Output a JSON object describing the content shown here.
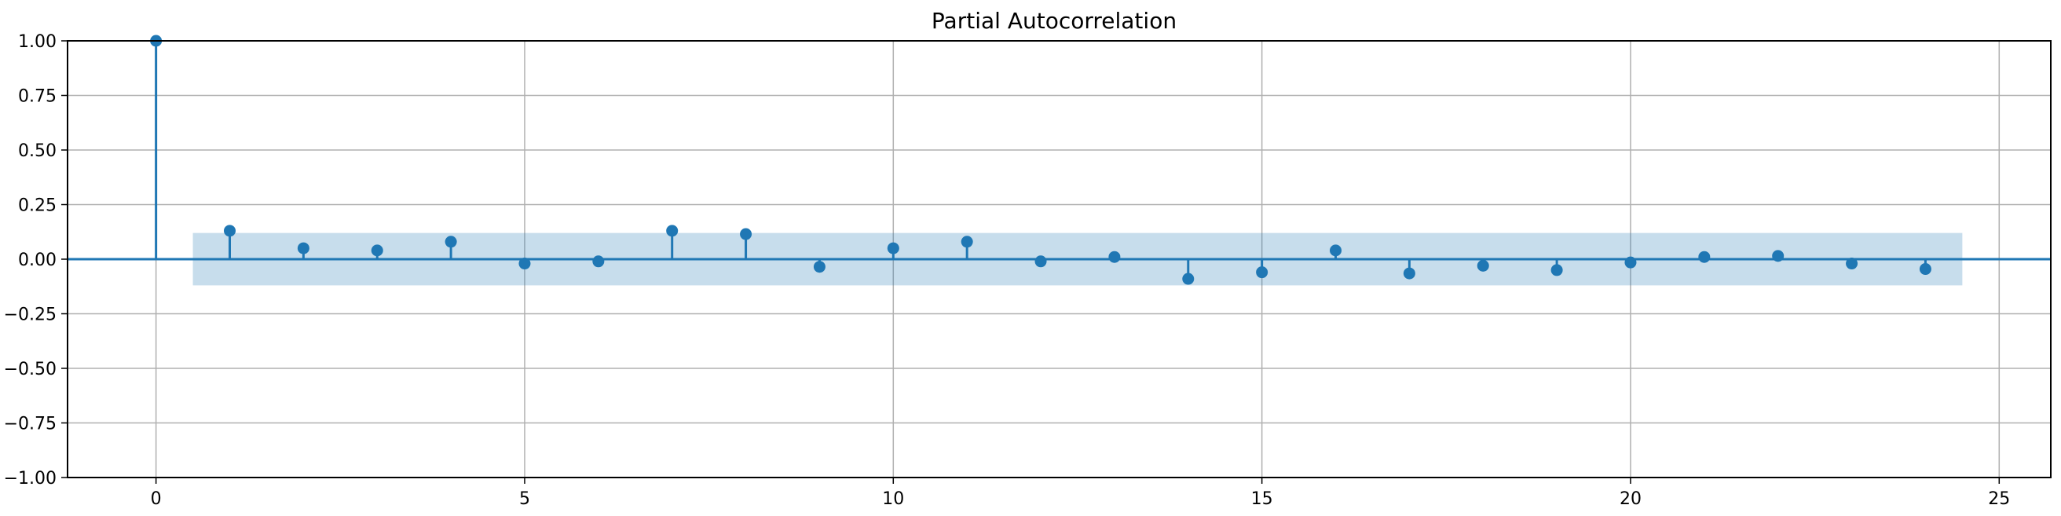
{
  "chart_data": {
    "type": "scatter",
    "title": "Partial Autocorrelation",
    "xlabel": "",
    "ylabel": "",
    "xlim": [
      -1.2,
      25.7
    ],
    "ylim": [
      -1.0,
      1.0
    ],
    "grid": true,
    "xticks": [
      0,
      5,
      10,
      15,
      20,
      25
    ],
    "yticks": [
      1.0,
      0.75,
      0.5,
      0.25,
      0.0,
      -0.25,
      -0.5,
      -0.75,
      -1.0
    ],
    "ytick_labels": [
      "1.00",
      "0.75",
      "0.50",
      "0.25",
      "0.00",
      "−0.25",
      "−0.50",
      "−0.75",
      "−1.00"
    ],
    "confidence_band": {
      "x_range": [
        0.5,
        24.5
      ],
      "lower": -0.12,
      "upper": 0.12
    },
    "x": [
      0,
      1,
      2,
      3,
      4,
      5,
      6,
      7,
      8,
      9,
      10,
      11,
      12,
      13,
      14,
      15,
      16,
      17,
      18,
      19,
      20,
      21,
      22,
      23,
      24
    ],
    "values": [
      1.0,
      0.13,
      0.05,
      0.04,
      0.08,
      -0.02,
      -0.01,
      0.13,
      0.115,
      -0.035,
      0.05,
      0.08,
      -0.01,
      0.01,
      -0.09,
      -0.06,
      0.04,
      -0.065,
      -0.03,
      -0.05,
      -0.015,
      0.01,
      0.015,
      -0.02,
      -0.045
    ],
    "colors": {
      "stem": "#1f77b4",
      "marker": "#1f77b4",
      "band": "#1f77b4",
      "grid": "#b0b0b0",
      "axis": "#000000"
    }
  }
}
